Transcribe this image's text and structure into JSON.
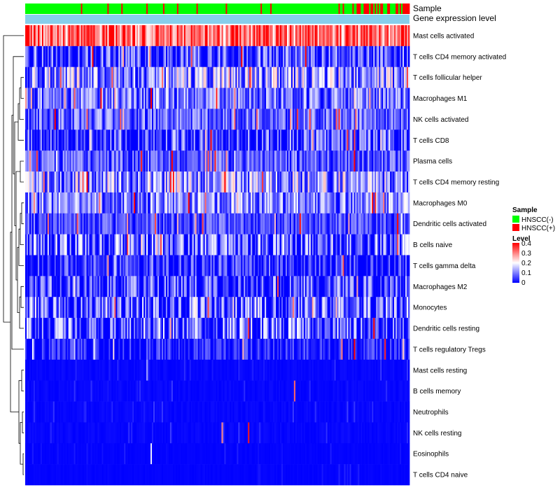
{
  "chart_data": {
    "type": "heatmap",
    "title": "",
    "annotation_rows": [
      "Sample",
      "Gene expression level"
    ],
    "rows": [
      "Mast cells activated",
      "T cells CD4 memory activated",
      "T cells follicular helper",
      "Macrophages M1",
      "NK cells activated",
      "T cells CD8",
      "Plasma cells",
      "T cells CD4 memory resting",
      "Macrophages M0",
      "Dendritic cells activated",
      "B cells naive",
      "T cells gamma delta",
      "Macrophages M2",
      "Monocytes",
      "Dendritic cells resting",
      "T cells regulatory  Tregs",
      "Mast cells resting",
      "B cells memory",
      "Neutrophils",
      "NK cells resting",
      "Eosinophils",
      "T cells CD4 naive"
    ],
    "row_typical_level": [
      0.32,
      0.04,
      0.12,
      0.09,
      0.08,
      0.04,
      0.07,
      0.12,
      0.1,
      0.06,
      0.05,
      0.03,
      0.04,
      0.05,
      0.05,
      0.02,
      0.01,
      0.01,
      0.01,
      0.01,
      0.005,
      0.005
    ],
    "n_samples": 276,
    "sample_split": {
      "HNSCC(-)": 0.84,
      "HNSCC(+)": 0.16
    },
    "legend": {
      "sample_title": "Sample",
      "sample_entries": [
        {
          "label": "HNSCC(-)",
          "color": "#00ff00"
        },
        {
          "label": "HNSCC(+)",
          "color": "#ff0000"
        }
      ],
      "level_title": "Level",
      "level_ticks": [
        "0.4",
        "0.3",
        "0.2",
        "0.1",
        "0"
      ],
      "level_range": [
        0,
        0.4
      ]
    },
    "colors": {
      "low": "#0000ff",
      "mid": "#ffffff",
      "high": "#ff0000",
      "expression_bar": "#87ceeb"
    }
  }
}
